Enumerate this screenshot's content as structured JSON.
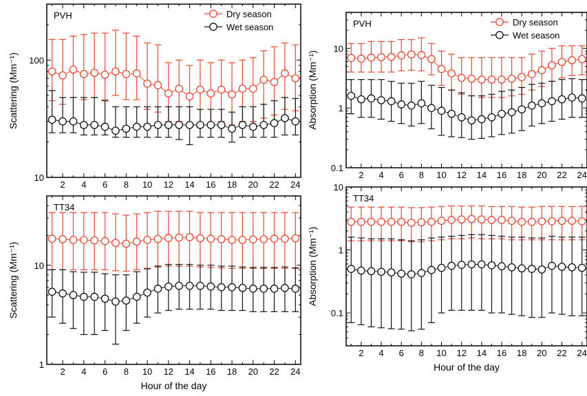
{
  "chart_data": [
    {
      "id": "scattering-pvh",
      "type": "line",
      "panel_label": "PVH",
      "xlabel": "",
      "ylabel": "Scattering (Mm⁻¹)",
      "yscale": "log",
      "xlim": [
        0.5,
        24.5
      ],
      "ylim": [
        10,
        300
      ],
      "x_ticks": [
        2,
        4,
        6,
        8,
        10,
        12,
        14,
        16,
        18,
        20,
        22,
        24
      ],
      "y_ticks": [
        10,
        100
      ],
      "legend": "top-right",
      "x": [
        1,
        2,
        3,
        4,
        5,
        6,
        7,
        8,
        9,
        10,
        11,
        12,
        13,
        14,
        15,
        16,
        17,
        18,
        19,
        20,
        21,
        22,
        23,
        24
      ],
      "series": [
        {
          "name": "Dry season",
          "color": "#e8462f",
          "values": [
            80,
            74,
            83,
            76,
            78,
            75,
            80,
            76,
            77,
            63,
            61,
            52,
            57,
            49,
            56,
            52,
            56,
            51,
            57,
            57,
            68,
            65,
            77,
            70
          ],
          "upper": [
            150,
            150,
            160,
            165,
            170,
            170,
            180,
            170,
            160,
            140,
            135,
            95,
            100,
            90,
            100,
            95,
            100,
            95,
            100,
            105,
            120,
            130,
            140,
            135
          ],
          "lower": [
            45,
            42,
            48,
            46,
            48,
            46,
            50,
            46,
            46,
            38,
            36,
            30,
            30,
            28,
            29,
            28,
            30,
            28,
            30,
            30,
            32,
            34,
            38,
            37
          ]
        },
        {
          "name": "Wet season",
          "color": "#111111",
          "values": [
            31,
            30,
            30,
            28,
            28,
            27,
            25,
            26,
            27,
            27,
            28,
            28,
            28,
            28,
            28,
            28,
            28,
            26,
            28,
            27,
            28,
            29,
            32,
            30
          ],
          "upper": [
            55,
            48,
            48,
            48,
            48,
            45,
            40,
            40,
            40,
            40,
            40,
            40,
            40,
            40,
            38,
            38,
            38,
            36,
            40,
            40,
            42,
            45,
            48,
            47
          ],
          "lower": [
            24,
            24,
            24,
            23,
            23,
            23,
            22,
            22,
            22,
            22,
            22,
            22,
            21,
            19,
            22,
            22,
            22,
            20,
            22,
            22,
            22,
            22,
            23,
            23
          ]
        }
      ]
    },
    {
      "id": "absorption-pvh",
      "type": "line",
      "panel_label": "PVH",
      "xlabel": "",
      "ylabel": "Absorption (Mm⁻¹)",
      "yscale": "log",
      "xlim": [
        0.5,
        24.5
      ],
      "ylim": [
        0.1,
        40
      ],
      "x_ticks": [
        2,
        4,
        6,
        8,
        10,
        12,
        14,
        16,
        18,
        20,
        22,
        24
      ],
      "y_ticks": [
        0.1,
        1,
        10
      ],
      "legend": "top-right",
      "x": [
        1,
        2,
        3,
        4,
        5,
        6,
        7,
        8,
        9,
        10,
        11,
        12,
        13,
        14,
        15,
        16,
        17,
        18,
        19,
        20,
        21,
        22,
        23,
        24
      ],
      "series": [
        {
          "name": "Dry season",
          "color": "#e8462f",
          "values": [
            6.9,
            6.7,
            7.0,
            7.1,
            7.2,
            7.6,
            7.9,
            7.7,
            6.6,
            4.5,
            3.8,
            3.2,
            3.1,
            3.0,
            3.0,
            3.0,
            3.1,
            3.3,
            3.7,
            4.3,
            5.2,
            5.9,
            6.3,
            6.6
          ],
          "upper": [
            12,
            12,
            13,
            13,
            13,
            14,
            14,
            15,
            12,
            9,
            8,
            7,
            7,
            7,
            7,
            7,
            7,
            7,
            8,
            9,
            10,
            11,
            11,
            11
          ],
          "lower": [
            4.0,
            4.0,
            4.0,
            4.0,
            4.0,
            4.2,
            4.3,
            4.2,
            3.6,
            2.4,
            2.0,
            1.7,
            1.6,
            1.5,
            1.5,
            1.5,
            1.6,
            1.7,
            2.0,
            2.3,
            2.8,
            3.2,
            3.5,
            3.6
          ]
        },
        {
          "name": "Wet season",
          "color": "#111111",
          "values": [
            1.6,
            1.4,
            1.45,
            1.35,
            1.3,
            1.15,
            1.1,
            1.2,
            1.0,
            0.9,
            0.8,
            0.7,
            0.62,
            0.65,
            0.7,
            0.8,
            0.85,
            0.95,
            1.1,
            1.2,
            1.3,
            1.4,
            1.5,
            1.45
          ],
          "upper": [
            3.0,
            3.0,
            3.0,
            3.0,
            2.8,
            2.6,
            2.6,
            2.8,
            2.4,
            2.2,
            2.0,
            1.8,
            1.6,
            1.6,
            1.7,
            1.9,
            2.0,
            2.2,
            2.5,
            2.6,
            2.8,
            3.0,
            3.1,
            3.0
          ],
          "lower": [
            0.8,
            0.7,
            0.7,
            0.65,
            0.6,
            0.55,
            0.5,
            0.55,
            0.45,
            0.35,
            0.33,
            0.32,
            0.3,
            0.31,
            0.33,
            0.36,
            0.38,
            0.42,
            0.5,
            0.55,
            0.6,
            0.65,
            0.7,
            0.7
          ]
        }
      ]
    },
    {
      "id": "scattering-tt34",
      "type": "line",
      "panel_label": "TT34",
      "xlabel": "Hour of the day",
      "ylabel": "Scattering (Mm⁻¹)",
      "yscale": "log",
      "xlim": [
        0.5,
        24.5
      ],
      "ylim": [
        1,
        50
      ],
      "x_ticks": [
        2,
        4,
        6,
        8,
        10,
        12,
        14,
        16,
        18,
        20,
        22,
        24
      ],
      "y_ticks": [
        1,
        10
      ],
      "legend": "none",
      "x": [
        1,
        2,
        3,
        4,
        5,
        6,
        7,
        8,
        9,
        10,
        11,
        12,
        13,
        14,
        15,
        16,
        17,
        18,
        19,
        20,
        21,
        22,
        23,
        24
      ],
      "series": [
        {
          "name": "Dry season",
          "color": "#e8462f",
          "values": [
            18.5,
            18.3,
            18.0,
            18.0,
            17.8,
            17.5,
            16.8,
            16.5,
            17.3,
            18.0,
            18.4,
            18.8,
            19.0,
            19.2,
            18.7,
            18.5,
            18.3,
            18.0,
            18.0,
            18.2,
            18.3,
            18.5,
            18.5,
            18.7
          ],
          "upper": [
            34,
            34,
            34,
            34,
            34,
            34,
            33,
            32,
            33,
            34,
            35,
            35,
            35,
            35,
            34,
            34,
            34,
            34,
            34,
            34,
            34,
            34,
            34,
            34
          ],
          "lower": [
            9,
            9,
            9,
            9,
            9,
            9,
            8.8,
            8.7,
            9,
            9.3,
            9.6,
            9.8,
            9.8,
            9.8,
            9.6,
            9.5,
            9.4,
            9.3,
            9.3,
            9.3,
            9.3,
            9.3,
            9.3,
            9.3
          ]
        },
        {
          "name": "Wet season",
          "color": "#111111",
          "values": [
            5.4,
            5.2,
            5.0,
            4.8,
            4.8,
            4.6,
            4.3,
            4.4,
            4.8,
            5.3,
            5.8,
            6.1,
            6.2,
            6.2,
            6.2,
            6.1,
            6.0,
            6.0,
            5.9,
            5.8,
            5.8,
            5.8,
            5.9,
            5.8
          ],
          "upper": [
            9,
            9,
            8.6,
            8.5,
            8.5,
            8.2,
            8,
            8,
            8.6,
            9.2,
            9.8,
            10.2,
            10.2,
            10.2,
            10,
            10,
            9.8,
            9.8,
            9.6,
            9.5,
            9.5,
            9.5,
            9.6,
            9.4
          ],
          "lower": [
            3.0,
            2.6,
            2.3,
            2.0,
            2.0,
            2.2,
            1.6,
            2.2,
            2.6,
            3.0,
            3.3,
            3.5,
            3.6,
            3.6,
            3.6,
            3.6,
            3.5,
            3.5,
            3.5,
            3.4,
            3.4,
            3.4,
            3.4,
            3.4
          ]
        }
      ]
    },
    {
      "id": "absorption-tt34",
      "type": "line",
      "panel_label": "TT34",
      "xlabel": "Hour of the day",
      "ylabel": "Absorption (Mm⁻¹)",
      "yscale": "log",
      "xlim": [
        0.5,
        24.5
      ],
      "ylim": [
        0.03,
        10
      ],
      "x_ticks": [
        2,
        4,
        6,
        8,
        10,
        12,
        14,
        16,
        18,
        20,
        22,
        24
      ],
      "y_ticks": [
        0.1,
        1,
        10
      ],
      "legend": "none",
      "x": [
        1,
        2,
        3,
        4,
        5,
        6,
        7,
        8,
        9,
        10,
        11,
        12,
        13,
        14,
        15,
        16,
        17,
        18,
        19,
        20,
        21,
        22,
        23,
        24
      ],
      "series": [
        {
          "name": "Dry season",
          "color": "#e8462f",
          "values": [
            2.8,
            2.8,
            2.8,
            2.8,
            2.8,
            2.8,
            2.7,
            2.75,
            2.8,
            2.9,
            3.0,
            3.05,
            3.1,
            3.05,
            3.0,
            3.0,
            2.9,
            2.8,
            2.8,
            2.85,
            2.85,
            2.9,
            2.9,
            2.85
          ],
          "upper": [
            4.8,
            4.8,
            4.8,
            4.8,
            4.8,
            4.8,
            4.7,
            4.7,
            4.8,
            4.9,
            5.0,
            5.0,
            5.0,
            5.0,
            4.9,
            4.9,
            4.9,
            4.8,
            4.8,
            4.9,
            4.9,
            4.9,
            4.9,
            4.9
          ],
          "lower": [
            1.4,
            1.4,
            1.4,
            1.4,
            1.4,
            1.4,
            1.35,
            1.35,
            1.4,
            1.45,
            1.5,
            1.5,
            1.55,
            1.5,
            1.5,
            1.5,
            1.45,
            1.45,
            1.45,
            1.45,
            1.45,
            1.45,
            1.45,
            1.45
          ]
        },
        {
          "name": "Wet season",
          "color": "#111111",
          "values": [
            0.5,
            0.47,
            0.46,
            0.45,
            0.44,
            0.42,
            0.41,
            0.43,
            0.48,
            0.52,
            0.56,
            0.58,
            0.59,
            0.59,
            0.57,
            0.55,
            0.53,
            0.51,
            0.5,
            0.49,
            0.56,
            0.54,
            0.53,
            0.52
          ],
          "upper": [
            1.6,
            1.55,
            1.5,
            1.5,
            1.5,
            1.45,
            1.4,
            1.45,
            1.55,
            1.6,
            1.65,
            1.7,
            1.75,
            1.75,
            1.7,
            1.65,
            1.6,
            1.6,
            1.55,
            1.55,
            1.65,
            1.6,
            1.6,
            1.6
          ],
          "lower": [
            0.07,
            0.065,
            0.06,
            0.058,
            0.056,
            0.055,
            0.052,
            0.055,
            0.07,
            0.1,
            0.11,
            0.11,
            0.11,
            0.11,
            0.1,
            0.1,
            0.095,
            0.09,
            0.085,
            0.085,
            0.1,
            0.095,
            0.09,
            0.09
          ]
        }
      ]
    }
  ]
}
